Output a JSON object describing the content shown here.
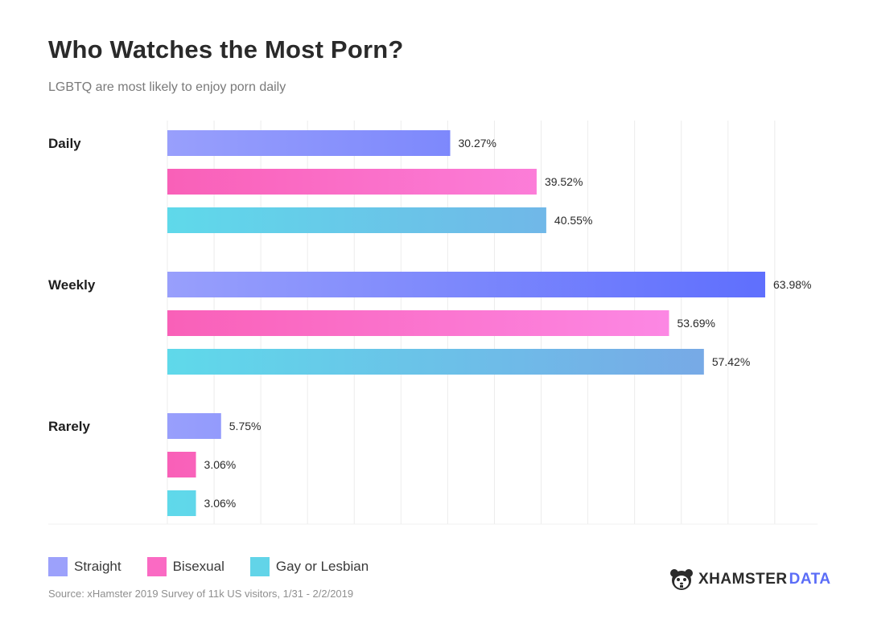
{
  "header": {
    "title": "Who Watches the Most Porn?",
    "subtitle": "LGBTQ are most likely to enjoy porn daily"
  },
  "chart_data": {
    "type": "bar",
    "orientation": "horizontal",
    "categories": [
      "Daily",
      "Weekly",
      "Rarely"
    ],
    "series": [
      {
        "name": "Straight",
        "values": [
          30.27,
          63.98,
          5.75
        ]
      },
      {
        "name": "Bisexual",
        "values": [
          39.52,
          53.69,
          3.06
        ]
      },
      {
        "name": "Gay or Lesbian",
        "values": [
          40.55,
          57.42,
          3.06
        ]
      }
    ],
    "value_labels": [
      [
        "30.27%",
        "63.98%",
        "5.75%"
      ],
      [
        "39.52%",
        "53.69%",
        "3.06%"
      ],
      [
        "40.55%",
        "57.42%",
        "3.06%"
      ]
    ],
    "xlim": [
      0,
      66
    ],
    "grid": true,
    "legend_position": "bottom-left",
    "colors": {
      "Straight": [
        "#989ffc",
        "#5f6ffd"
      ],
      "Bisexual": [
        "#f960b8",
        "#fd8fec"
      ],
      "Gay or Lesbian": [
        "#5fd9ea",
        "#7aa4e6"
      ],
      "grid": "#ececec"
    }
  },
  "legend": {
    "items": [
      {
        "label": "Straight",
        "color": "#9ca1fb"
      },
      {
        "label": "Bisexual",
        "color": "#fa6ac3"
      },
      {
        "label": "Gay or Lesbian",
        "color": "#62d4e8"
      }
    ]
  },
  "footer": {
    "source": "Source: xHamster 2019 Survey of 11k US visitors, 1/31 - 2/2/2019",
    "brand_x": "XHAMSTER",
    "brand_data": "DATA",
    "brand_icon": "hamster-icon"
  }
}
